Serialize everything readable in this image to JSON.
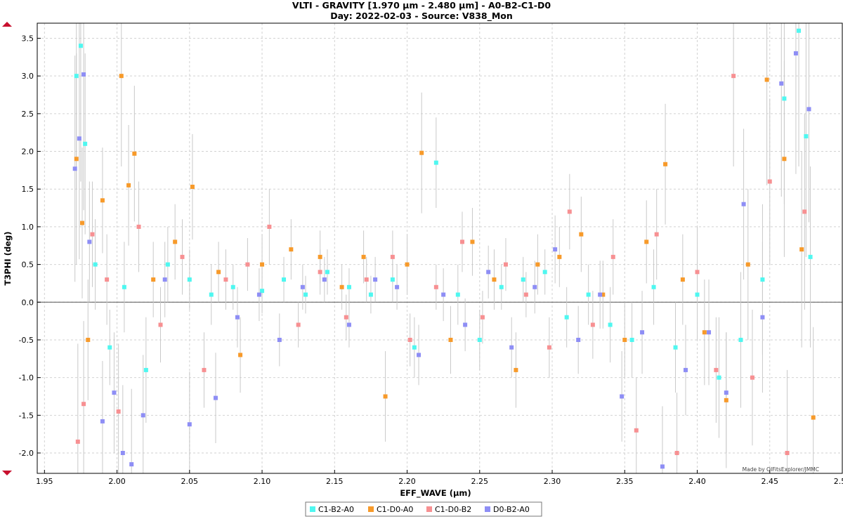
{
  "chart_data": {
    "type": "scatter",
    "title": "VLTI - GRAVITY [1.970 µm - 2.480 µm] - A0-B2-C1-D0",
    "subtitle": "Day: 2022-02-03 - Source: V838_Mon",
    "xlabel": "EFF_WAVE (µm)",
    "ylabel": "T3PHI (deg)",
    "xlim": [
      1.945,
      2.5
    ],
    "ylim": [
      -2.27,
      3.7
    ],
    "x_ticks": [
      1.95,
      2.0,
      2.05,
      2.1,
      2.15,
      2.2,
      2.25,
      2.3,
      2.35,
      2.4,
      2.45,
      2.5
    ],
    "x_tick_labels": [
      "1.95",
      "2.00",
      "2.05",
      "2.10",
      "2.15",
      "2.20",
      "2.25",
      "2.30",
      "2.35",
      "2.40",
      "2.45",
      "2.50"
    ],
    "y_ticks": [
      -2.0,
      -1.5,
      -1.0,
      -0.5,
      0.0,
      0.5,
      1.0,
      1.5,
      2.0,
      2.5,
      3.0,
      3.5
    ],
    "y_tick_labels": [
      "-2.0",
      "-1.5",
      "-1.0",
      "-0.5",
      "0.0",
      "0.5",
      "1.0",
      "1.5",
      "2.0",
      "2.5",
      "3.0",
      "3.5"
    ],
    "grid": true,
    "legend_position": "bottom-center",
    "credit": "Made by OIFitsExplorer/JMMC",
    "series": [
      {
        "name": "C1-B2-A0",
        "color": "#4ff7f0",
        "x": [
          1.972,
          1.975,
          1.978,
          1.985,
          1.995,
          2.005,
          2.02,
          2.035,
          2.05,
          2.065,
          2.08,
          2.1,
          2.115,
          2.13,
          2.145,
          2.16,
          2.175,
          2.19,
          2.205,
          2.22,
          2.235,
          2.25,
          2.265,
          2.28,
          2.295,
          2.31,
          2.325,
          2.34,
          2.355,
          2.37,
          2.385,
          2.4,
          2.415,
          2.43,
          2.445,
          2.46,
          2.47,
          2.475,
          2.478
        ],
        "y": [
          3.0,
          3.4,
          2.1,
          0.5,
          -0.6,
          0.2,
          -0.9,
          0.5,
          0.3,
          0.1,
          0.2,
          0.15,
          0.3,
          0.1,
          0.4,
          0.2,
          0.1,
          0.3,
          -0.6,
          1.85,
          0.1,
          -0.5,
          0.2,
          0.3,
          0.4,
          -0.2,
          0.1,
          -0.3,
          -0.5,
          0.2,
          -0.6,
          0.1,
          -1.0,
          -0.5,
          0.3,
          2.7,
          3.6,
          2.2,
          0.6
        ],
        "y_err": [
          1.5,
          1.8,
          1.2,
          0.6,
          0.5,
          0.6,
          0.7,
          0.5,
          0.4,
          0.4,
          0.3,
          0.3,
          0.3,
          0.25,
          0.3,
          0.25,
          0.25,
          0.3,
          0.4,
          0.6,
          0.4,
          0.4,
          0.3,
          0.3,
          0.3,
          0.4,
          0.4,
          0.5,
          0.5,
          0.5,
          0.6,
          0.6,
          0.8,
          0.9,
          1.0,
          1.4,
          1.8,
          1.6,
          1.2
        ]
      },
      {
        "name": "C1-D0-A0",
        "color": "#f79a2a",
        "x": [
          1.972,
          1.976,
          1.98,
          1.99,
          2.003,
          2.008,
          2.012,
          2.025,
          2.04,
          2.052,
          2.07,
          2.085,
          2.1,
          2.12,
          2.14,
          2.155,
          2.17,
          2.185,
          2.2,
          2.21,
          2.23,
          2.245,
          2.26,
          2.275,
          2.29,
          2.305,
          2.32,
          2.335,
          2.35,
          2.365,
          2.378,
          2.39,
          2.405,
          2.42,
          2.435,
          2.448,
          2.46,
          2.472,
          2.48
        ],
        "y": [
          1.9,
          1.05,
          -0.5,
          1.35,
          3.0,
          1.55,
          1.97,
          0.3,
          0.8,
          1.53,
          0.4,
          -0.7,
          0.5,
          0.7,
          0.6,
          0.2,
          0.6,
          -1.25,
          0.5,
          1.98,
          -0.5,
          0.8,
          0.3,
          -0.9,
          0.5,
          0.6,
          0.9,
          0.1,
          -0.5,
          0.8,
          1.83,
          0.3,
          -0.4,
          -1.3,
          0.5,
          2.95,
          1.9,
          0.7,
          -1.53
        ],
        "y_err": [
          1.4,
          1.0,
          0.8,
          0.7,
          1.2,
          0.8,
          0.9,
          0.5,
          0.5,
          0.7,
          0.4,
          0.5,
          0.4,
          0.4,
          0.35,
          0.3,
          0.35,
          0.6,
          0.4,
          0.8,
          0.45,
          0.45,
          0.4,
          0.5,
          0.4,
          0.4,
          0.5,
          0.45,
          0.5,
          0.55,
          0.8,
          0.6,
          0.7,
          0.9,
          1.0,
          1.4,
          1.3,
          1.3,
          1.2
        ]
      },
      {
        "name": "C1-D0-B2",
        "color": "#f79092",
        "x": [
          1.973,
          1.977,
          1.983,
          1.993,
          2.001,
          2.015,
          2.03,
          2.045,
          2.06,
          2.075,
          2.09,
          2.105,
          2.125,
          2.14,
          2.158,
          2.172,
          2.19,
          2.202,
          2.22,
          2.238,
          2.252,
          2.268,
          2.282,
          2.298,
          2.312,
          2.328,
          2.342,
          2.358,
          2.372,
          2.386,
          2.4,
          2.413,
          2.425,
          2.438,
          2.45,
          2.462,
          2.474
        ],
        "y": [
          -1.85,
          -1.35,
          0.9,
          0.3,
          -1.45,
          1.0,
          -0.3,
          0.6,
          -0.9,
          0.3,
          0.5,
          1.0,
          -0.3,
          0.4,
          -0.2,
          0.3,
          0.6,
          -0.5,
          0.2,
          0.8,
          -0.2,
          0.5,
          0.1,
          -0.6,
          1.2,
          -0.3,
          0.6,
          -1.7,
          0.9,
          -2.0,
          0.4,
          -0.9,
          3.0,
          -1.0,
          1.6,
          -2.0,
          1.2
        ],
        "y_err": [
          1.3,
          1.1,
          0.7,
          0.6,
          0.9,
          0.6,
          0.5,
          0.5,
          0.5,
          0.4,
          0.35,
          0.5,
          0.3,
          0.3,
          0.3,
          0.3,
          0.35,
          0.35,
          0.3,
          0.4,
          0.35,
          0.35,
          0.3,
          0.4,
          0.5,
          0.45,
          0.5,
          0.7,
          0.6,
          0.8,
          0.6,
          0.7,
          1.2,
          0.9,
          1.1,
          1.1,
          1.3
        ]
      },
      {
        "name": "D0-B2-A0",
        "color": "#8e8ef5",
        "x": [
          1.971,
          1.974,
          1.977,
          1.981,
          1.99,
          1.998,
          2.004,
          2.01,
          2.018,
          2.033,
          2.05,
          2.068,
          2.083,
          2.098,
          2.112,
          2.128,
          2.143,
          2.16,
          2.178,
          2.193,
          2.208,
          2.225,
          2.24,
          2.256,
          2.272,
          2.288,
          2.302,
          2.318,
          2.333,
          2.348,
          2.362,
          2.376,
          2.392,
          2.408,
          2.42,
          2.432,
          2.445,
          2.458,
          2.468,
          2.477
        ],
        "y": [
          1.77,
          2.17,
          3.02,
          0.8,
          -1.58,
          -1.2,
          -2.0,
          -2.15,
          -1.5,
          0.3,
          -1.62,
          -1.27,
          -0.2,
          0.1,
          -0.5,
          0.2,
          0.3,
          -0.3,
          0.3,
          0.2,
          -0.7,
          0.1,
          -0.3,
          0.4,
          -0.6,
          0.2,
          0.7,
          -0.5,
          0.1,
          -1.25,
          -0.4,
          -2.18,
          -0.9,
          -0.4,
          -1.2,
          1.3,
          -0.2,
          2.9,
          3.3,
          2.56
        ],
        "y_err": [
          1.5,
          1.6,
          1.8,
          0.8,
          0.8,
          0.8,
          0.9,
          1.0,
          0.8,
          0.5,
          0.7,
          0.6,
          0.4,
          0.35,
          0.35,
          0.3,
          0.3,
          0.3,
          0.3,
          0.3,
          0.4,
          0.35,
          0.35,
          0.35,
          0.4,
          0.35,
          0.45,
          0.45,
          0.45,
          0.6,
          0.55,
          0.8,
          0.6,
          0.7,
          0.8,
          1.0,
          1.0,
          1.5,
          1.6,
          1.5
        ]
      }
    ]
  }
}
